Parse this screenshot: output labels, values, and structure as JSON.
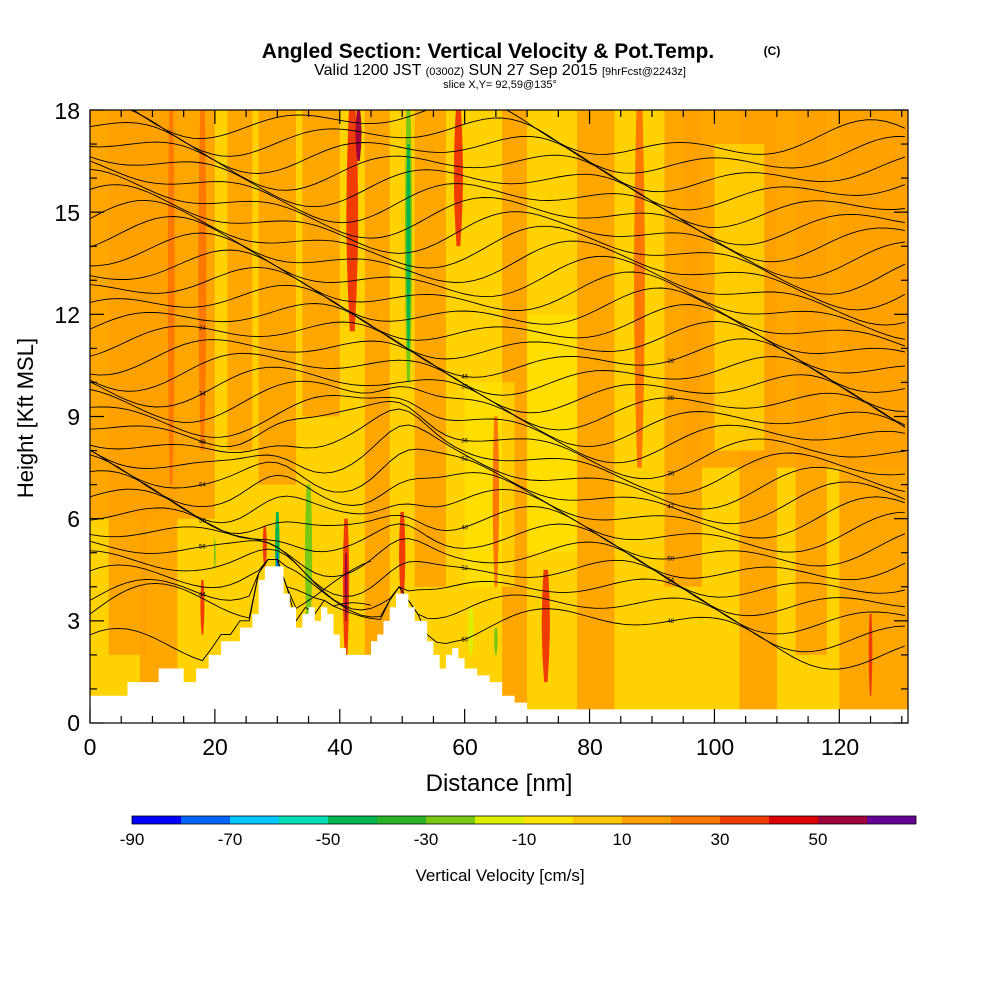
{
  "chart_data": {
    "type": "heatmap",
    "title": "Angled Section: Vertical Velocity & Pot.Temp.",
    "title_mark": "(C)",
    "subtitle": {
      "valid": "Valid 1200 JST",
      "utc": "(0300Z)",
      "date": "SUN 27 Sep 2015",
      "forecast": "[9hrFcst@2243z]"
    },
    "slice": "slice X,Y= 92,59@135°",
    "xlabel": "Distance [nm]",
    "ylabel": "Height [Kft MSL]",
    "xlim": [
      0,
      131
    ],
    "ylim": [
      0,
      18
    ],
    "x_ticks": [
      "0",
      "20",
      "40",
      "60",
      "80",
      "100",
      "120"
    ],
    "y_ticks": [
      "0",
      "3",
      "6",
      "9",
      "12",
      "15",
      "18"
    ],
    "colorbar": {
      "label": "Vertical Velocity [cm/s]",
      "tick_labels": [
        "-90",
        "-70",
        "-50",
        "-30",
        "-10",
        "10",
        "30",
        "50"
      ],
      "levels": [
        -90,
        -80,
        -70,
        -60,
        -50,
        -40,
        -30,
        -20,
        -10,
        0,
        10,
        20,
        30,
        40,
        50,
        60
      ],
      "colors": [
        "#0000ff",
        "#0064ff",
        "#00c8ff",
        "#00dcb4",
        "#00b450",
        "#28b428",
        "#78c814",
        "#dcf000",
        "#ffe600",
        "#ffc800",
        "#ffa000",
        "#ff7800",
        "#f03c00",
        "#dc0000",
        "#a0003c",
        "#640096"
      ]
    },
    "field_background_color": "#ffd200",
    "terrain_color": "#ffffff",
    "terrain_profile_kft": [
      [
        0,
        0.8
      ],
      [
        2,
        0.8
      ],
      [
        6,
        1.2
      ],
      [
        9,
        1.2
      ],
      [
        11,
        1.6
      ],
      [
        13,
        1.6
      ],
      [
        15,
        1.2
      ],
      [
        17,
        1.6
      ],
      [
        19,
        2.0
      ],
      [
        21,
        2.4
      ],
      [
        24,
        2.8
      ],
      [
        26,
        3.2
      ],
      [
        27,
        4.2
      ],
      [
        28,
        4.6
      ],
      [
        30,
        4.6
      ],
      [
        31,
        3.8
      ],
      [
        32,
        3.4
      ],
      [
        33,
        2.8
      ],
      [
        34,
        3.2
      ],
      [
        35,
        3.4
      ],
      [
        36,
        3.0
      ],
      [
        37,
        3.4
      ],
      [
        38,
        3.2
      ],
      [
        39,
        2.6
      ],
      [
        40,
        2.2
      ],
      [
        41,
        2.0
      ],
      [
        43,
        2.0
      ],
      [
        45,
        2.4
      ],
      [
        46,
        2.6
      ],
      [
        47,
        3.0
      ],
      [
        48,
        3.4
      ],
      [
        49,
        3.8
      ],
      [
        51,
        3.4
      ],
      [
        52,
        3.0
      ],
      [
        54,
        2.4
      ],
      [
        55,
        2.0
      ],
      [
        56,
        1.6
      ],
      [
        57,
        2.0
      ],
      [
        58,
        2.2
      ],
      [
        59,
        1.9
      ],
      [
        60,
        1.6
      ],
      [
        62,
        1.4
      ],
      [
        64,
        1.2
      ],
      [
        66,
        0.8
      ],
      [
        68,
        0.6
      ],
      [
        70,
        0.4
      ],
      [
        131,
        0.4
      ]
    ],
    "updraft_columns": [
      {
        "x": 13,
        "top": 18.0,
        "bottom": 7.0,
        "w": 1.5,
        "v": 20
      },
      {
        "x": 18,
        "top": 18.0,
        "bottom": 8.0,
        "w": 1.8,
        "v": 20
      },
      {
        "x": 18,
        "top": 4.2,
        "bottom": 2.6,
        "w": 0.9,
        "v": 30
      },
      {
        "x": 28,
        "top": 5.8,
        "bottom": 4.6,
        "w": 0.9,
        "v": 30
      },
      {
        "x": 41,
        "top": 6.0,
        "bottom": 2.0,
        "w": 1.4,
        "v": 30
      },
      {
        "x": 41,
        "top": 5.0,
        "bottom": 3.0,
        "w": 0.6,
        "v": 50
      },
      {
        "x": 42,
        "top": 18.0,
        "bottom": 11.5,
        "w": 2.6,
        "v": 30
      },
      {
        "x": 43,
        "top": 18.0,
        "bottom": 16.5,
        "w": 1.3,
        "v": 50
      },
      {
        "x": 50,
        "top": 6.2,
        "bottom": 3.6,
        "w": 1.4,
        "v": 30
      },
      {
        "x": 59,
        "top": 18.0,
        "bottom": 14.0,
        "w": 2.0,
        "v": 30
      },
      {
        "x": 65,
        "top": 9.0,
        "bottom": 4.0,
        "w": 1.4,
        "v": 20
      },
      {
        "x": 73,
        "top": 4.5,
        "bottom": 1.2,
        "w": 1.8,
        "v": 30
      },
      {
        "x": 88,
        "top": 18.0,
        "bottom": 7.5,
        "w": 2.4,
        "v": 20
      },
      {
        "x": 125,
        "top": 3.2,
        "bottom": 0.8,
        "w": 0.8,
        "v": 30
      }
    ],
    "downdraft_columns": [
      {
        "x": 51,
        "top": 18.0,
        "bottom": 10.0,
        "w": 1.6,
        "v": -30
      },
      {
        "x": 51,
        "top": 17.0,
        "bottom": 11.0,
        "w": 0.9,
        "v": -50
      },
      {
        "x": 35,
        "top": 7.0,
        "bottom": 2.6,
        "w": 1.6,
        "v": -30
      },
      {
        "x": 30,
        "top": 6.2,
        "bottom": 4.0,
        "w": 1.0,
        "v": -50
      },
      {
        "x": 30,
        "top": 5.0,
        "bottom": 4.0,
        "w": 0.4,
        "v": -80
      },
      {
        "x": 61,
        "top": 3.4,
        "bottom": 2.0,
        "w": 1.2,
        "v": -20
      },
      {
        "x": 65,
        "top": 2.8,
        "bottom": 2.0,
        "w": 0.8,
        "v": -30
      },
      {
        "x": 20,
        "top": 5.4,
        "bottom": 4.5,
        "w": 0.4,
        "v": -30
      }
    ],
    "isentropes": {
      "line_color": "#000000",
      "labels": [
        "44",
        "60",
        "48",
        "56",
        "52",
        "54",
        "50",
        "40",
        "58",
        "64",
        "62",
        "47",
        "48",
        "36",
        "36",
        "34",
        "30",
        "28",
        "24",
        "46",
        "26"
      ]
    }
  }
}
